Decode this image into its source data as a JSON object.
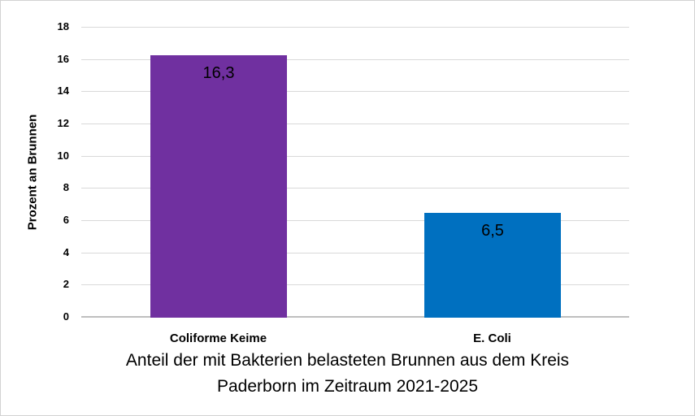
{
  "chart_data": {
    "type": "bar",
    "categories": [
      "Coliforme Keime",
      "E. Coli"
    ],
    "values": [
      16.3,
      6.5
    ],
    "value_labels": [
      "16,3",
      "6,5"
    ],
    "bar_colors": [
      "#7030A0",
      "#0070C0"
    ],
    "title": "Anteil der mit Bakterien belasteten Brunnen aus dem Kreis Paderborn im Zeitraum 2021-2025",
    "title_lines": [
      "Anteil der mit Bakterien belasteten Brunnen aus dem Kreis",
      "Paderborn im Zeitraum 2021-2025"
    ],
    "xlabel": "",
    "ylabel": "Prozent an Brunnen",
    "ylim": [
      0,
      18
    ],
    "yticks": [
      0,
      2,
      4,
      6,
      8,
      10,
      12,
      14,
      16,
      18
    ],
    "grid": "horizontal",
    "legend": "none",
    "colors": {
      "gridline": "#D9D9D9",
      "axis_line": "#BFBFBF",
      "text": "#000000",
      "background": "#FFFFFF",
      "border": "#D2D2D2"
    }
  }
}
